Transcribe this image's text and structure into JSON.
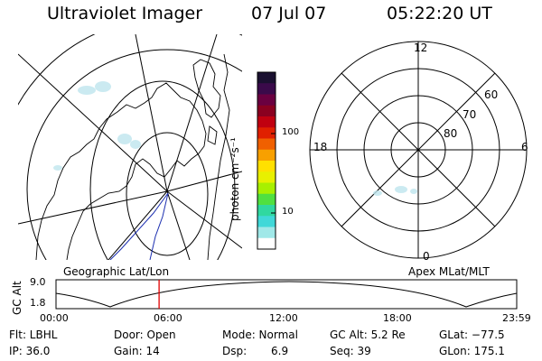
{
  "header": {
    "instrument": "Ultraviolet Imager",
    "date": "07 Jul 07",
    "time": "05:22:20 UT"
  },
  "colorbar": {
    "unit": "photon cm⁻²s⁻¹",
    "ticks": [
      "100",
      "10"
    ],
    "colors": [
      "#1a1030",
      "#3a0a4a",
      "#6a0040",
      "#8a0020",
      "#c00010",
      "#e02000",
      "#f06000",
      "#f8a000",
      "#ffe000",
      "#e8f000",
      "#a8f000",
      "#50e040",
      "#30d8a0",
      "#40d8d8",
      "#a0e8e8",
      "#ffffff"
    ]
  },
  "polar": {
    "mlt_labels": {
      "top": "12",
      "left": "18",
      "right": "6",
      "bottom": "0"
    },
    "lat_labels": [
      "60",
      "70",
      "80"
    ]
  },
  "timeline": {
    "left_label": "Geographic Lat/Lon",
    "right_label": "Apex MLat/MLT",
    "axis_label": "GC Alt",
    "y_ticks": [
      "9.0",
      "1.8"
    ],
    "x_ticks": [
      "00:00",
      "06:00",
      "12:00",
      "18:00",
      "23:59"
    ],
    "cursor_hour": 5.37
  },
  "info": {
    "row1": {
      "flt": "Flt: LBHL",
      "door": "Door: Open",
      "mode": "Mode: Normal",
      "gcalt": "GC Alt: 5.2 Re",
      "glat": "GLat: −77.5"
    },
    "row2": {
      "ip": "IP: 36.0",
      "gain": "Gain: 14",
      "dsp_label": "Dsp:",
      "dsp_value": "6.9",
      "seq": "Seq: 39",
      "glon": "GLon: 175.1"
    }
  }
}
